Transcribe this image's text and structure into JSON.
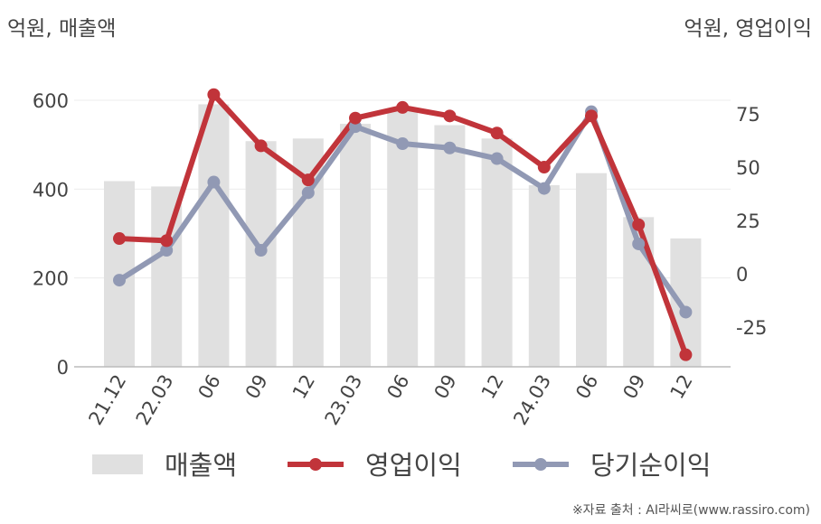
{
  "units": {
    "left": "억원, 매출액",
    "right": "억원, 영업이익"
  },
  "source": "※자료 출처 : AI라씨로(www.rassiro.com)",
  "chart_data": {
    "type": "bar+line",
    "categories": [
      "21.12",
      "22.03",
      "06",
      "09",
      "12",
      "23.03",
      "06",
      "09",
      "12",
      "24.03",
      "06",
      "09",
      "12"
    ],
    "series": [
      {
        "name": "매출액",
        "type": "bar",
        "axis": "left",
        "color": "#e0e0e0",
        "values": [
          418,
          406,
          591,
          508,
          514,
          547,
          578,
          544,
          514,
          409,
          436,
          337,
          289
        ]
      },
      {
        "name": "영업이익",
        "type": "line",
        "axis": "right",
        "color": "#c1343a",
        "values": [
          16.5,
          15.5,
          84,
          60,
          44,
          73,
          78,
          74,
          66,
          50,
          74,
          23,
          -38
        ]
      },
      {
        "name": "당기순이익",
        "type": "line",
        "axis": "right",
        "color": "#9199b4",
        "values": [
          -3,
          11,
          43,
          11,
          38,
          69,
          61,
          59,
          54,
          40,
          76,
          14,
          -18
        ]
      }
    ],
    "left_axis": {
      "ylim": [
        0,
        600
      ],
      "ticks": [
        0,
        200,
        400,
        600
      ]
    },
    "right_axis": {
      "ylim": [
        -45,
        85
      ],
      "ticks": [
        -25,
        0,
        25,
        50,
        75
      ]
    },
    "grid": true,
    "legend": "bottom"
  }
}
